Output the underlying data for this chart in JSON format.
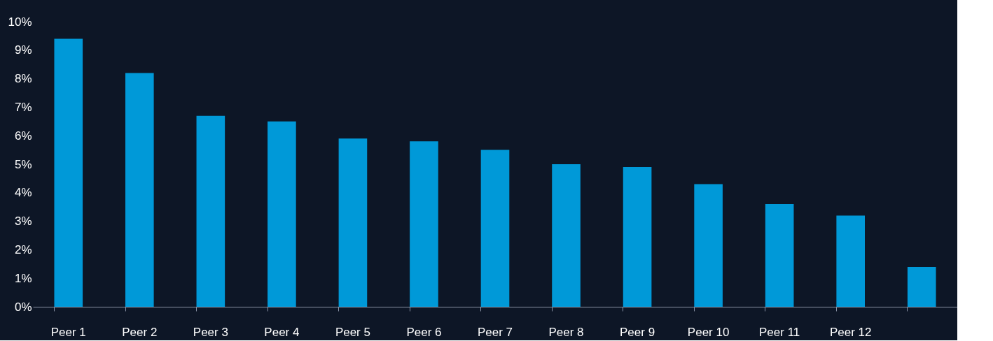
{
  "chart_data": {
    "type": "bar",
    "categories": [
      "Peer 1",
      "Peer 2",
      "Peer 3",
      "Peer 4",
      "Peer 5",
      "Peer 6",
      "Peer 7",
      "Peer 8",
      "Peer 9",
      "Peer 10",
      "Peer 11",
      "Peer 12",
      null
    ],
    "values": [
      9.4,
      8.2,
      6.7,
      6.5,
      5.9,
      5.8,
      5.5,
      5.0,
      4.9,
      4.3,
      3.6,
      3.2,
      1.4
    ],
    "color": "#0099d8",
    "ylim": [
      0,
      10
    ],
    "yticks": [
      {
        "value": 0,
        "label": "0%"
      },
      {
        "value": 1,
        "label": "1%"
      },
      {
        "value": 2,
        "label": "2%"
      },
      {
        "value": 3,
        "label": "3%"
      },
      {
        "value": 4,
        "label": "4%"
      },
      {
        "value": 5,
        "label": "5%"
      },
      {
        "value": 6,
        "label": "6%"
      },
      {
        "value": 7,
        "label": "7%"
      },
      {
        "value": 8,
        "label": "8%"
      },
      {
        "value": 9,
        "label": "9%"
      },
      {
        "value": 10,
        "label": "10%"
      }
    ],
    "grid": false
  }
}
